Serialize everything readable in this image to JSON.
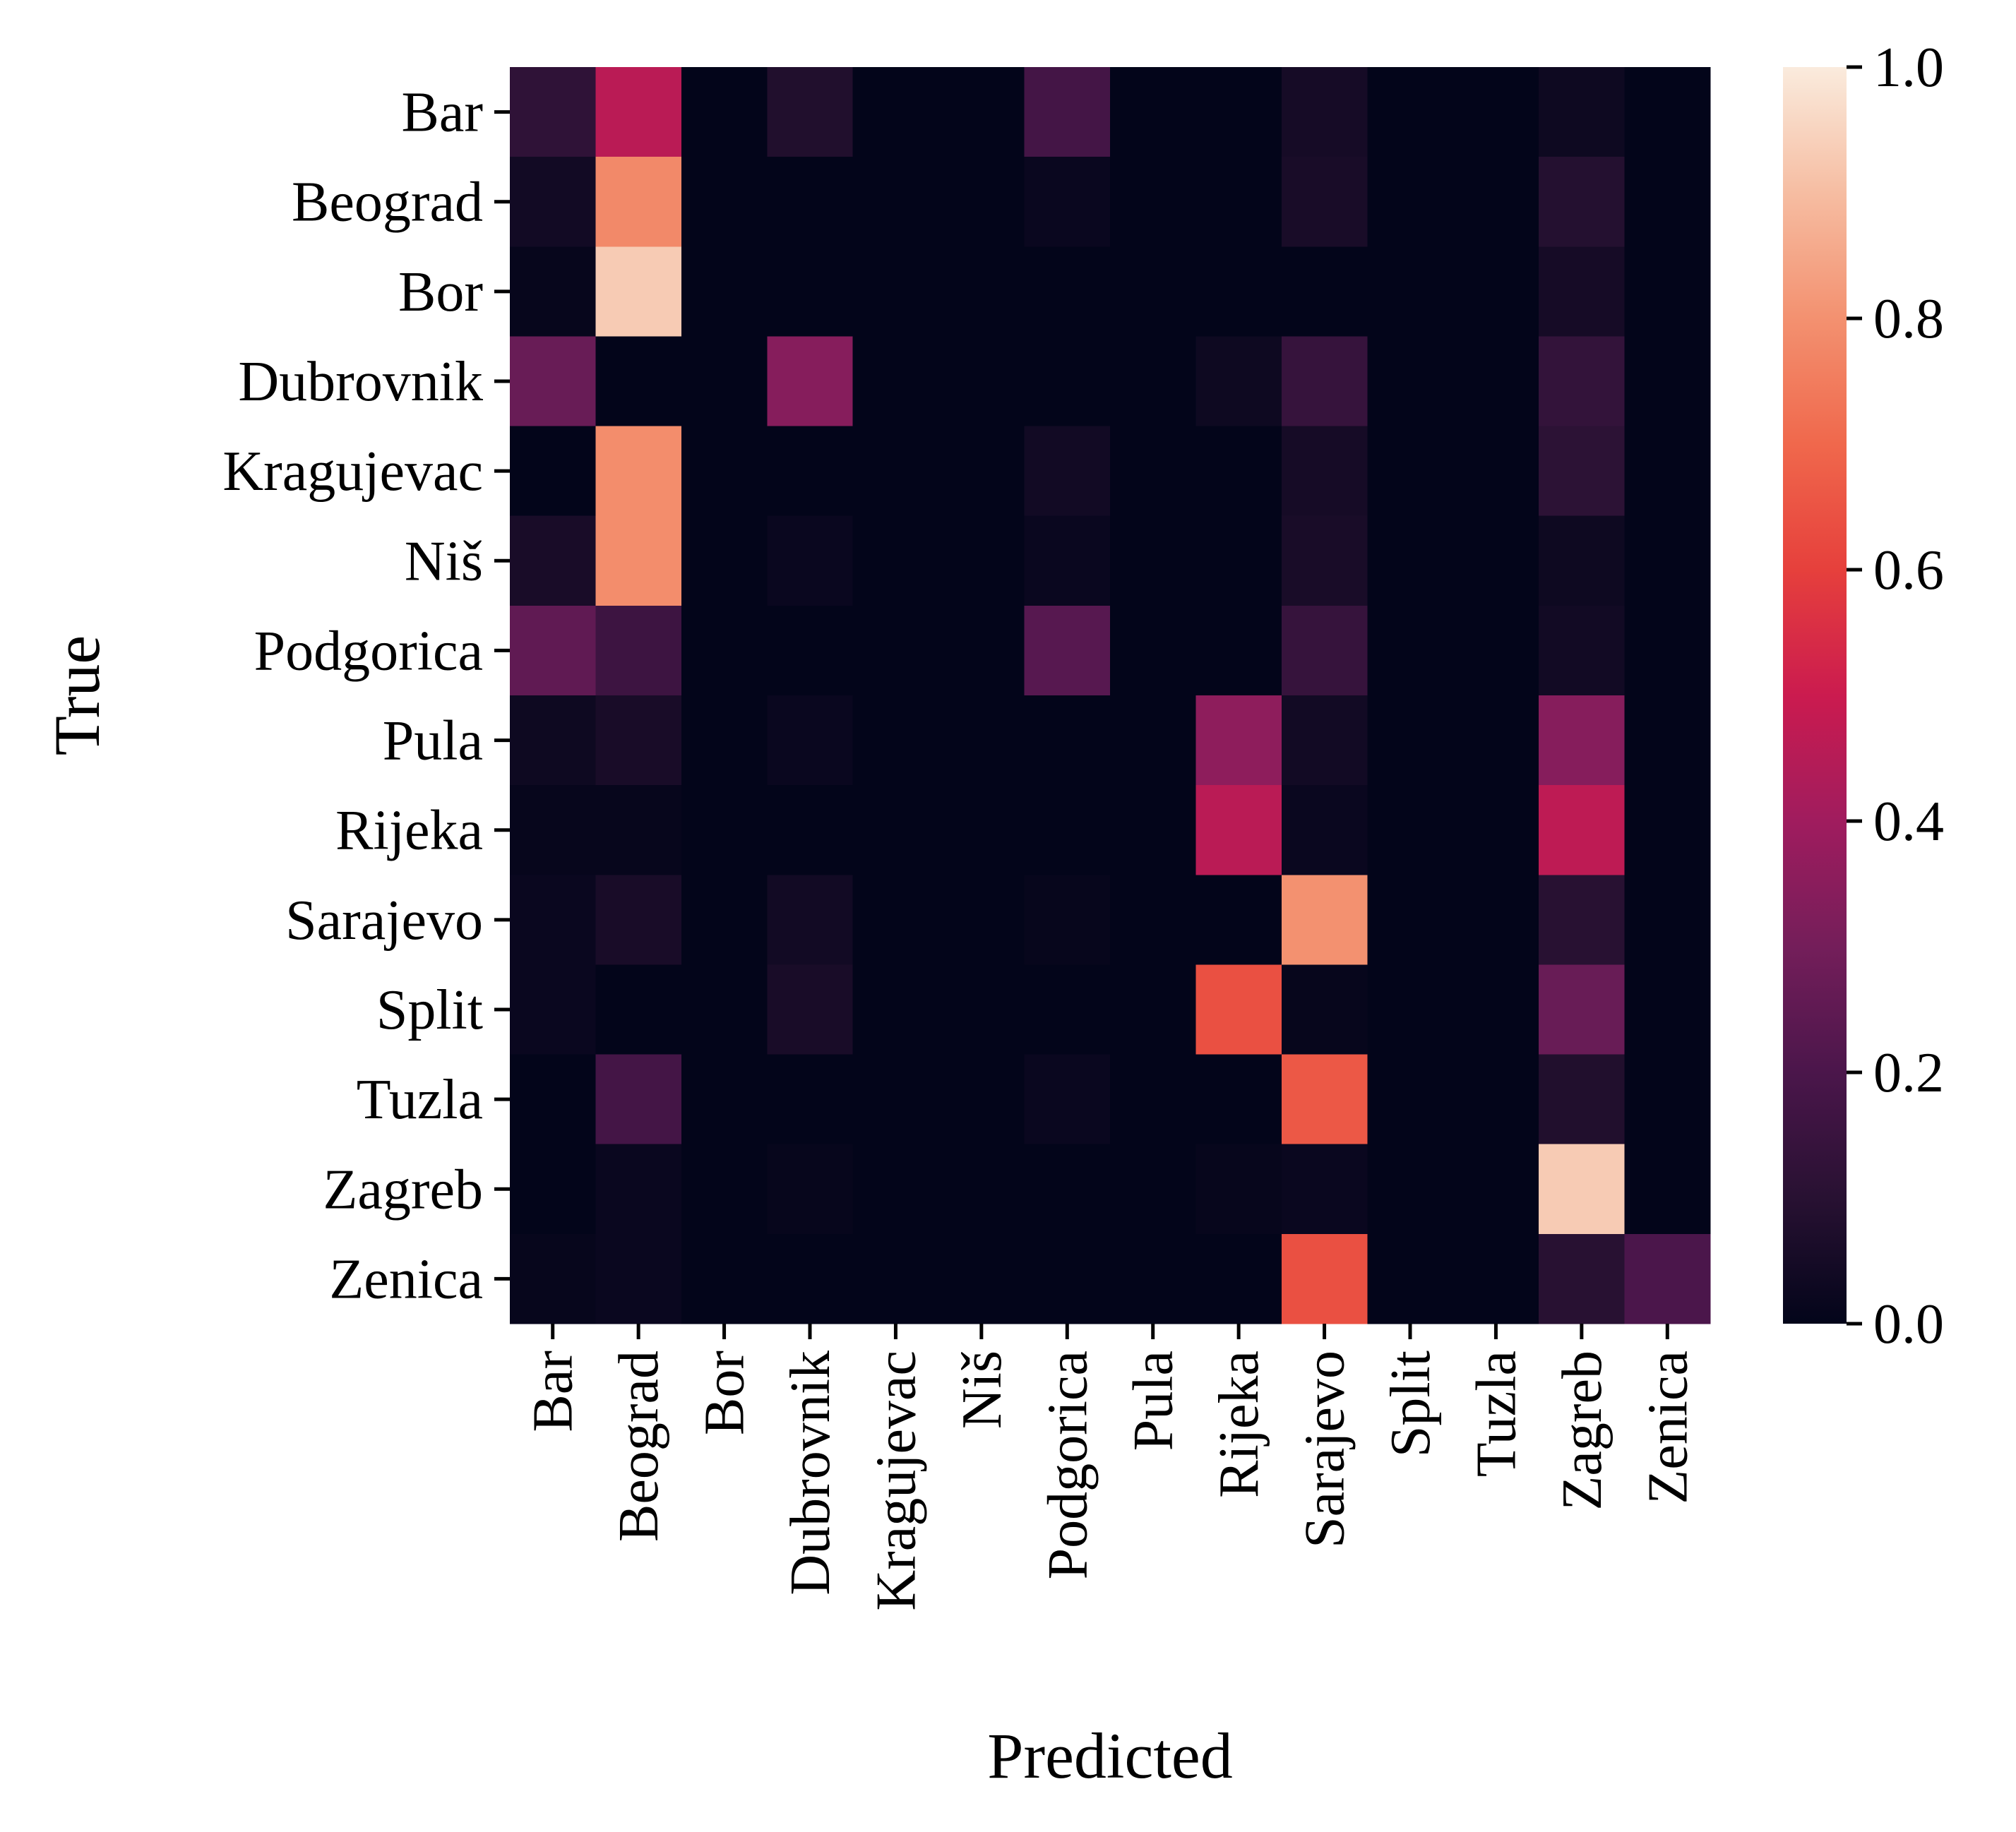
{
  "chart_data": {
    "type": "heatmap",
    "title": "",
    "xlabel": "Predicted",
    "ylabel": "True",
    "row_labels": [
      "Bar",
      "Beograd",
      "Bor",
      "Dubrovnik",
      "Kragujevac",
      "Niš",
      "Podgorica",
      "Pula",
      "Rijeka",
      "Sarajevo",
      "Split",
      "Tuzla",
      "Zagreb",
      "Zenica"
    ],
    "col_labels": [
      "Bar",
      "Beograd",
      "Bor",
      "Dubrovnik",
      "Kragujevac",
      "Niš",
      "Podgorica",
      "Pula",
      "Rijeka",
      "Sarajevo",
      "Split",
      "Tuzla",
      "Zagreb",
      "Zenica"
    ],
    "values": [
      [
        0.12,
        0.46,
        0.0,
        0.08,
        0.0,
        0.0,
        0.18,
        0.0,
        0.0,
        0.05,
        0.0,
        0.0,
        0.03,
        0.0
      ],
      [
        0.04,
        0.78,
        0.0,
        0.0,
        0.0,
        0.0,
        0.02,
        0.0,
        0.0,
        0.06,
        0.0,
        0.0,
        0.09,
        0.0
      ],
      [
        0.01,
        0.93,
        0.0,
        0.0,
        0.0,
        0.0,
        0.0,
        0.0,
        0.0,
        0.0,
        0.0,
        0.0,
        0.05,
        0.0
      ],
      [
        0.27,
        0.0,
        0.0,
        0.34,
        0.0,
        0.0,
        0.0,
        0.0,
        0.03,
        0.14,
        0.0,
        0.0,
        0.13,
        0.0
      ],
      [
        0.0,
        0.79,
        0.0,
        0.0,
        0.0,
        0.0,
        0.04,
        0.0,
        0.0,
        0.05,
        0.0,
        0.0,
        0.11,
        0.0
      ],
      [
        0.06,
        0.79,
        0.0,
        0.02,
        0.0,
        0.0,
        0.02,
        0.0,
        0.0,
        0.06,
        0.0,
        0.0,
        0.03,
        0.0
      ],
      [
        0.25,
        0.16,
        0.0,
        0.0,
        0.0,
        0.0,
        0.23,
        0.0,
        0.0,
        0.14,
        0.0,
        0.0,
        0.04,
        0.0
      ],
      [
        0.03,
        0.06,
        0.0,
        0.02,
        0.0,
        0.0,
        0.0,
        0.0,
        0.36,
        0.04,
        0.0,
        0.0,
        0.34,
        0.0
      ],
      [
        0.01,
        0.01,
        0.0,
        0.0,
        0.0,
        0.0,
        0.0,
        0.0,
        0.46,
        0.02,
        0.0,
        0.0,
        0.47,
        0.0
      ],
      [
        0.02,
        0.06,
        0.0,
        0.04,
        0.0,
        0.0,
        0.01,
        0.0,
        0.0,
        0.8,
        0.0,
        0.0,
        0.1,
        0.0
      ],
      [
        0.02,
        0.0,
        0.0,
        0.06,
        0.0,
        0.0,
        0.0,
        0.0,
        0.64,
        0.01,
        0.0,
        0.0,
        0.27,
        0.0
      ],
      [
        0.0,
        0.18,
        0.0,
        0.0,
        0.0,
        0.0,
        0.02,
        0.0,
        0.0,
        0.66,
        0.0,
        0.0,
        0.08,
        0.0
      ],
      [
        0.0,
        0.02,
        0.0,
        0.01,
        0.0,
        0.0,
        0.0,
        0.0,
        0.01,
        0.02,
        0.0,
        0.0,
        0.93,
        0.0
      ],
      [
        0.01,
        0.02,
        0.0,
        0.0,
        0.0,
        0.0,
        0.0,
        0.0,
        0.0,
        0.64,
        0.0,
        0.0,
        0.1,
        0.2
      ]
    ],
    "vmin": 0.0,
    "vmax": 1.0,
    "colormap": "rocket",
    "colorbar": {
      "ticks": [
        0.0,
        0.2,
        0.4,
        0.6,
        0.8,
        1.0
      ],
      "tick_labels": [
        "0.0",
        "0.2",
        "0.4",
        "0.6",
        "0.8",
        "1.0"
      ]
    },
    "grid": false,
    "legend": "colorbar-right"
  }
}
